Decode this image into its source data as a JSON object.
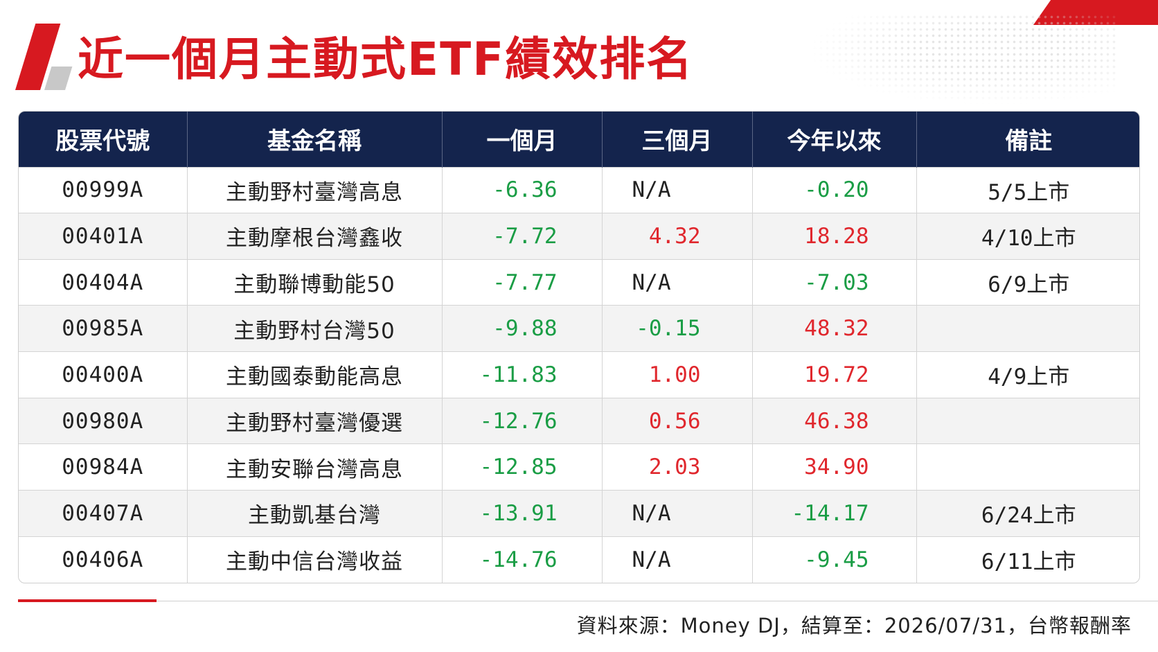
{
  "title": "近一個月主動式ETF績效排名",
  "colors": {
    "accent_red": "#d71920",
    "header_navy": "#14244d",
    "positive_red": "#e0272d",
    "negative_green": "#1a9d45"
  },
  "table": {
    "headers": [
      "股票代號",
      "基金名稱",
      "一個月",
      "三個月",
      "今年以來",
      "備註"
    ],
    "rows": [
      {
        "code": "00999A",
        "name": "主動野村臺灣高息",
        "m1": "-6.36",
        "m3": "N/A",
        "ytd": "-0.20",
        "note": "5/5上市"
      },
      {
        "code": "00401A",
        "name": "主動摩根台灣鑫收",
        "m1": "-7.72",
        "m3": "4.32",
        "ytd": "18.28",
        "note": "4/10上市"
      },
      {
        "code": "00404A",
        "name": "主動聯博動能50",
        "m1": "-7.77",
        "m3": "N/A",
        "ytd": "-7.03",
        "note": "6/9上市"
      },
      {
        "code": "00985A",
        "name": "主動野村台灣50",
        "m1": "-9.88",
        "m3": "-0.15",
        "ytd": "48.32",
        "note": ""
      },
      {
        "code": "00400A",
        "name": "主動國泰動能高息",
        "m1": "-11.83",
        "m3": "1.00",
        "ytd": "19.72",
        "note": "4/9上市"
      },
      {
        "code": "00980A",
        "name": "主動野村臺灣優選",
        "m1": "-12.76",
        "m3": "0.56",
        "ytd": "46.38",
        "note": ""
      },
      {
        "code": "00984A",
        "name": "主動安聯台灣高息",
        "m1": "-12.85",
        "m3": "2.03",
        "ytd": "34.90",
        "note": ""
      },
      {
        "code": "00407A",
        "name": "主動凱基台灣",
        "m1": "-13.91",
        "m3": "N/A",
        "ytd": "-14.17",
        "note": "6/24上市"
      },
      {
        "code": "00406A",
        "name": "主動中信台灣收益",
        "m1": "-14.76",
        "m3": "N/A",
        "ytd": "-9.45",
        "note": "6/11上市"
      }
    ]
  },
  "footer": {
    "source": "資料來源：Money DJ，結算至：2026/07/31，台幣報酬率"
  }
}
